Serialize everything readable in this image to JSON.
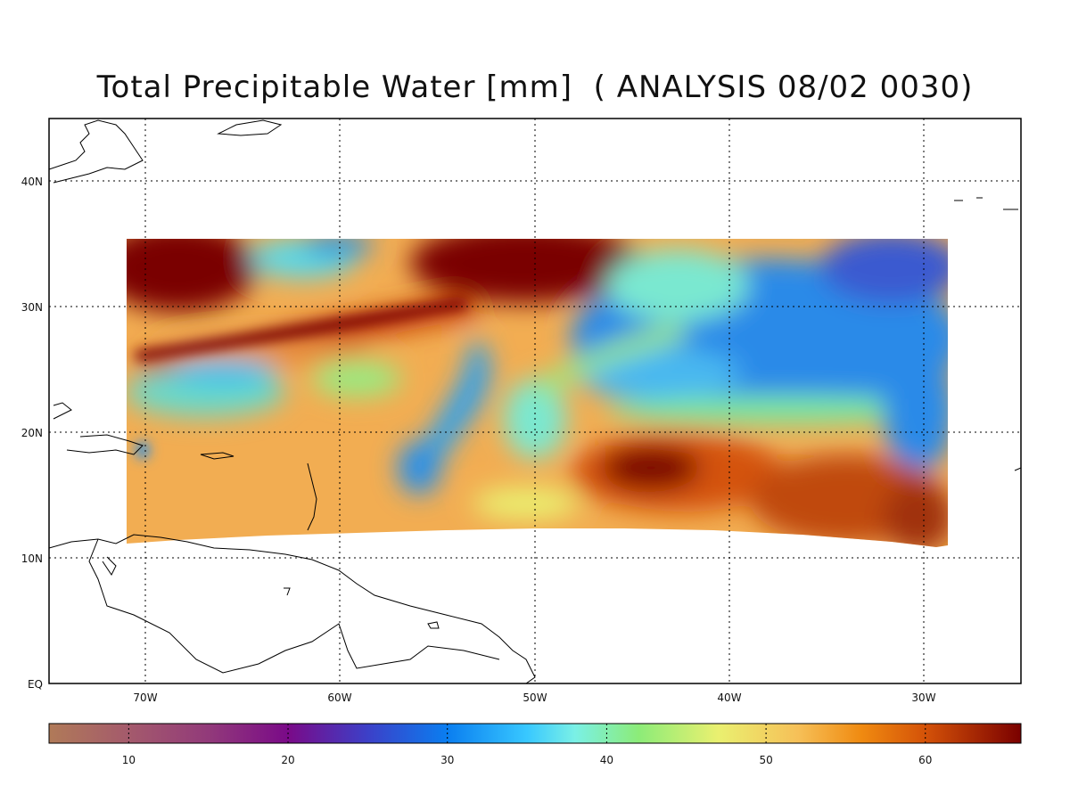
{
  "title": "Total Precipitable Water [mm]  ( ANALYSIS 08/02 0030)",
  "map": {
    "lon_labels": [
      "70W",
      "60W",
      "50W",
      "40W",
      "30W"
    ],
    "lon_values": [
      -70,
      -60,
      -50,
      -40,
      -30
    ],
    "lat_labels": [
      "EQ",
      "10N",
      "20N",
      "30N",
      "40N"
    ],
    "lat_values": [
      0,
      10,
      20,
      30,
      40
    ],
    "lon_range": [
      -75,
      -25
    ],
    "lat_range": [
      0,
      45
    ],
    "gridlines": true
  },
  "colorbar": {
    "min": 5,
    "max": 66,
    "tick_labels": [
      "10",
      "20",
      "30",
      "40",
      "50",
      "60"
    ],
    "tick_values": [
      10,
      20,
      30,
      40,
      50,
      60
    ],
    "stops": [
      {
        "v": 5,
        "c": "#b07a58"
      },
      {
        "v": 10,
        "c": "#a45a6c"
      },
      {
        "v": 15,
        "c": "#923a7a"
      },
      {
        "v": 20,
        "c": "#7a0a88"
      },
      {
        "v": 25,
        "c": "#3c40c8"
      },
      {
        "v": 30,
        "c": "#0a7ef0"
      },
      {
        "v": 35,
        "c": "#38c8ff"
      },
      {
        "v": 38,
        "c": "#7af0e6"
      },
      {
        "v": 42,
        "c": "#8cec78"
      },
      {
        "v": 47,
        "c": "#eaf070"
      },
      {
        "v": 52,
        "c": "#f6c058"
      },
      {
        "v": 56,
        "c": "#f08a10"
      },
      {
        "v": 60,
        "c": "#d45208"
      },
      {
        "v": 66,
        "c": "#7a0000"
      }
    ]
  }
}
